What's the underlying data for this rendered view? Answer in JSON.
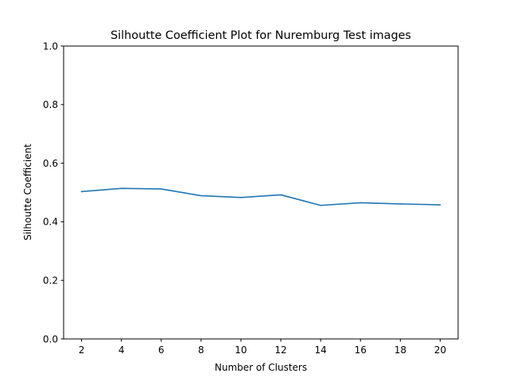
{
  "chart_data": {
    "type": "line",
    "title": "Silhoutte Coefficient Plot for Nuremburg Test images",
    "xlabel": "Number of Clusters",
    "ylabel": "Silhoutte Coefficient",
    "x": [
      2,
      4,
      6,
      8,
      10,
      12,
      14,
      16,
      18,
      20
    ],
    "series": [
      {
        "values": [
          0.503,
          0.514,
          0.512,
          0.489,
          0.483,
          0.492,
          0.456,
          0.465,
          0.461,
          0.458
        ],
        "color": "#1f77b4"
      }
    ],
    "xticks": [
      2,
      4,
      6,
      8,
      10,
      12,
      14,
      16,
      18,
      20
    ],
    "yticks": [
      "0.0",
      "0.2",
      "0.4",
      "0.6",
      "0.8",
      "1.0"
    ],
    "xlim": [
      1.1,
      20.9
    ],
    "ylim": [
      0.0,
      1.0
    ],
    "grid": false
  }
}
